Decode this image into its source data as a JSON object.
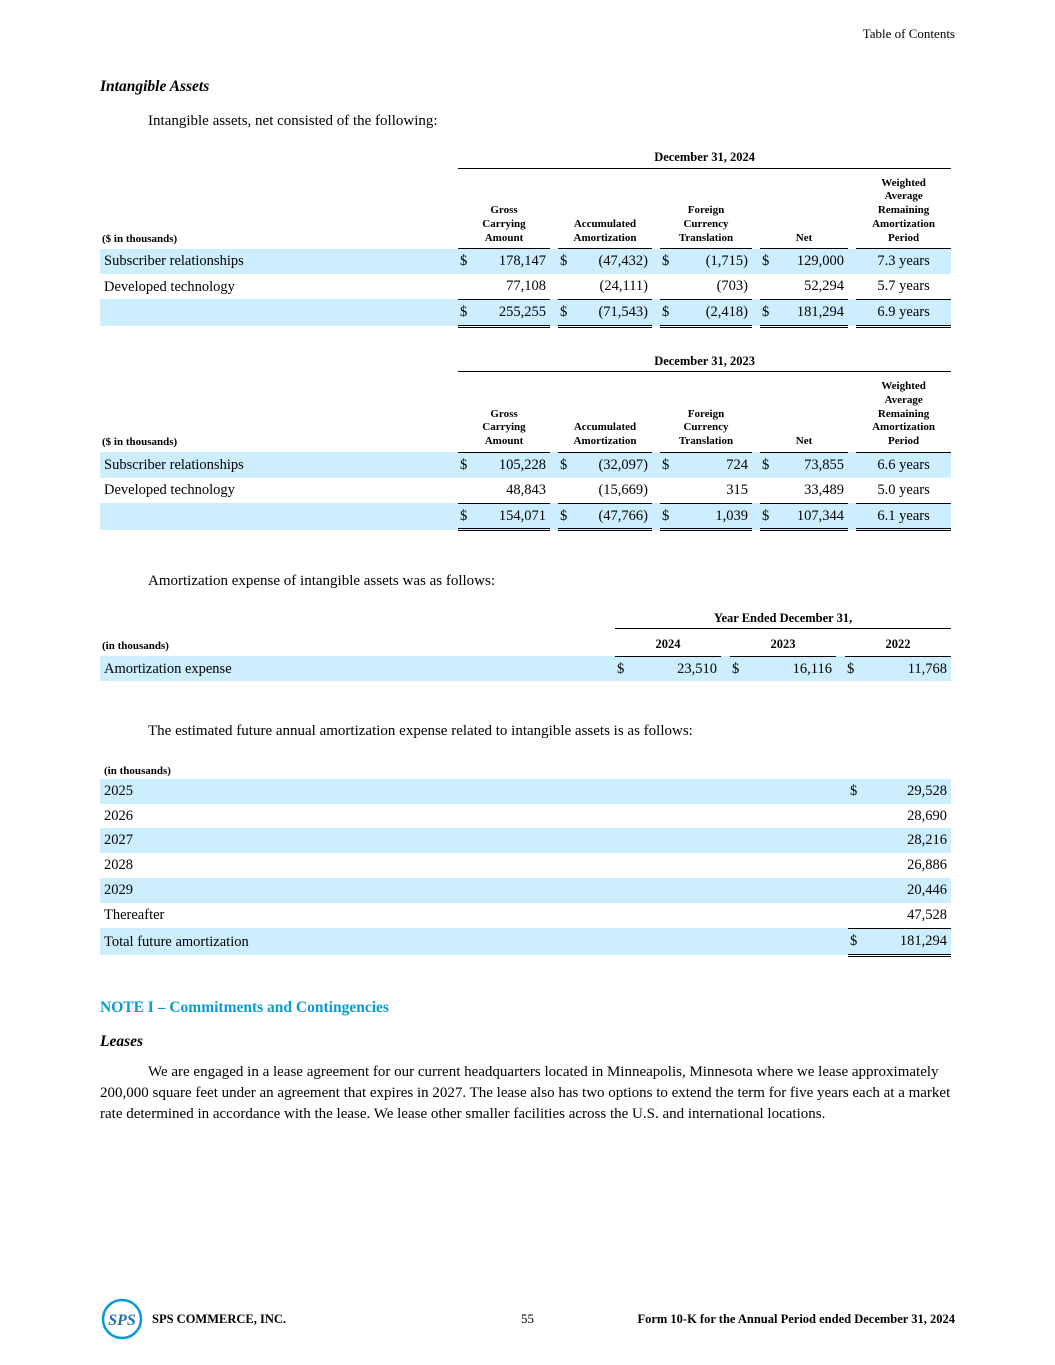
{
  "meta": {
    "toc_link": "Table of Contents",
    "page_number": "55",
    "footer_company": "SPS COMMERCE, INC.",
    "footer_form": "Form 10-K for the Annual Period ended December 31, 2024",
    "logo_text": "SPS"
  },
  "colors": {
    "highlight": "#cceeff",
    "note_heading": "#0a9bd5",
    "logo_stroke": "#0a9bd5",
    "logo_letters": "#1e6fb8"
  },
  "intangible_section": {
    "heading": "Intangible Assets",
    "intro": "Intangible assets, net consisted of the following:",
    "amortization_intro": "Amortization expense of intangible assets was as follows:",
    "future_intro": "The estimated future annual amortization expense related to intangible assets is as follows:"
  },
  "intangible_tables": [
    {
      "period_header": "December 31, 2024",
      "units_label": "($ in thousands)",
      "columns": [
        "Gross\nCarrying\nAmount",
        "Accumulated\nAmortization",
        "Foreign\nCurrency\nTranslation",
        "Net",
        "Weighted\nAverage\nRemaining\nAmortization\nPeriod"
      ],
      "rows": [
        {
          "label": "Subscriber relationships",
          "dollars": true,
          "values": [
            "178,147",
            "(47,432)",
            "(1,715)",
            "129,000"
          ],
          "period": "7.3 years",
          "highlight": true
        },
        {
          "label": "Developed technology",
          "dollars": false,
          "values": [
            "77,108",
            "(24,111)",
            "(703)",
            "52,294"
          ],
          "period": "5.7 years",
          "highlight": false
        }
      ],
      "total": {
        "dollars": true,
        "values": [
          "255,255",
          "(71,543)",
          "(2,418)",
          "181,294"
        ],
        "period": "6.9 years",
        "highlight": true
      }
    },
    {
      "period_header": "December 31, 2023",
      "units_label": "($ in thousands)",
      "columns": [
        "Gross\nCarrying\nAmount",
        "Accumulated\nAmortization",
        "Foreign\nCurrency\nTranslation",
        "Net",
        "Weighted\nAverage\nRemaining\nAmortization\nPeriod"
      ],
      "rows": [
        {
          "label": "Subscriber relationships",
          "dollars": true,
          "values": [
            "105,228",
            "(32,097)",
            "724",
            "73,855"
          ],
          "period": "6.6 years",
          "highlight": true
        },
        {
          "label": "Developed technology",
          "dollars": false,
          "values": [
            "48,843",
            "(15,669)",
            "315",
            "33,489"
          ],
          "period": "5.0 years",
          "highlight": false
        }
      ],
      "total": {
        "dollars": true,
        "values": [
          "154,071",
          "(47,766)",
          "1,039",
          "107,344"
        ],
        "period": "6.1 years",
        "highlight": true
      }
    }
  ],
  "amortization_expense_table": {
    "group_header": "Year Ended December 31,",
    "units_label": "(in thousands)",
    "years": [
      "2024",
      "2023",
      "2022"
    ],
    "row": {
      "label": "Amortization expense",
      "values": [
        "23,510",
        "16,116",
        "11,768"
      ],
      "highlight": true
    }
  },
  "future_amortization_table": {
    "units_label": "(in thousands)",
    "rows": [
      {
        "label": "2025",
        "dollar": true,
        "value": "29,528",
        "highlight": true
      },
      {
        "label": "2026",
        "dollar": false,
        "value": "28,690",
        "highlight": false
      },
      {
        "label": "2027",
        "dollar": false,
        "value": "28,216",
        "highlight": true
      },
      {
        "label": "2028",
        "dollar": false,
        "value": "26,886",
        "highlight": false
      },
      {
        "label": "2029",
        "dollar": false,
        "value": "20,446",
        "highlight": true
      },
      {
        "label": "Thereafter",
        "dollar": false,
        "value": "47,528",
        "highlight": false,
        "underline": true
      },
      {
        "label": "Total future amortization",
        "dollar": true,
        "value": "181,294",
        "highlight": true,
        "total": true
      }
    ]
  },
  "note_section": {
    "heading": "NOTE I – Commitments and Contingencies",
    "subheading": "Leases",
    "paragraph": "We are engaged in a lease agreement for our current headquarters located in Minneapolis, Minnesota where we lease approximately 200,000 square feet under an agreement that expires in 2027. The lease also has two options to extend the term for five years each at a market rate determined in accordance with the lease. We lease other smaller facilities across the U.S. and international locations."
  }
}
